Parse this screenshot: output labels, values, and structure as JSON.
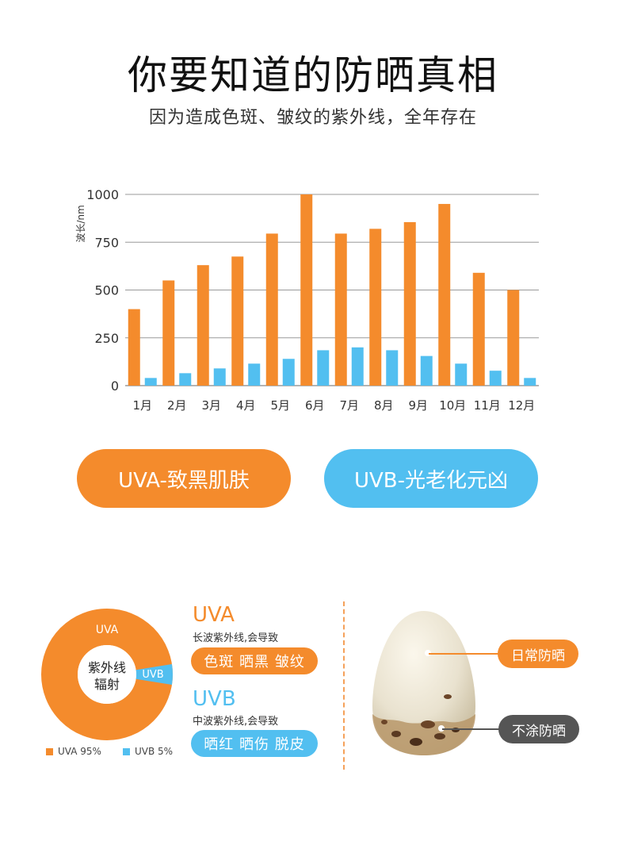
{
  "header": {
    "title": "你要知道的防晒真相",
    "subtitle": "因为造成色斑、皱纹的紫外线，全年存在"
  },
  "chart_data": {
    "type": "bar",
    "ylabel": "波长/nm",
    "ylim": [
      0,
      1000
    ],
    "yticks": [
      0,
      250,
      500,
      750,
      1000
    ],
    "categories": [
      "1月",
      "2月",
      "3月",
      "4月",
      "5月",
      "6月",
      "7月",
      "8月",
      "9月",
      "10月",
      "11月",
      "12月"
    ],
    "series": [
      {
        "values": [
          400,
          550,
          630,
          675,
          795,
          1000,
          795,
          820,
          855,
          950,
          590,
          500
        ],
        "color": "#f48b2c"
      },
      {
        "values": [
          40,
          65,
          90,
          115,
          140,
          185,
          200,
          185,
          155,
          115,
          78,
          40
        ],
        "color": "#52bff0"
      }
    ],
    "grid": true,
    "legend": "none"
  },
  "pills": {
    "uva": "UVA-致黑肌肤",
    "uvb": "UVB-光老化元凶"
  },
  "donut": {
    "center_line1": "紫外线",
    "center_line2": "辐射",
    "uva_label": "UVA",
    "uvb_label": "UVB",
    "uva_share": 95,
    "uvb_share": 5,
    "legend_uva": "UVA 95%",
    "legend_uvb": "UVB 5%"
  },
  "uva_info": {
    "heading": "UVA",
    "desc": "长波紫外线,会导致",
    "effects": "色斑 晒黑 皱纹"
  },
  "uvb_info": {
    "heading": "UVB",
    "desc": "中波紫外线,会导致",
    "effects": "晒红 晒伤 脱皮"
  },
  "egg": {
    "label_protected": "日常防晒",
    "label_unprotected": "不涂防晒"
  },
  "colors": {
    "orange": "#f48b2c",
    "blue": "#52bff0",
    "dark": "#555555"
  }
}
